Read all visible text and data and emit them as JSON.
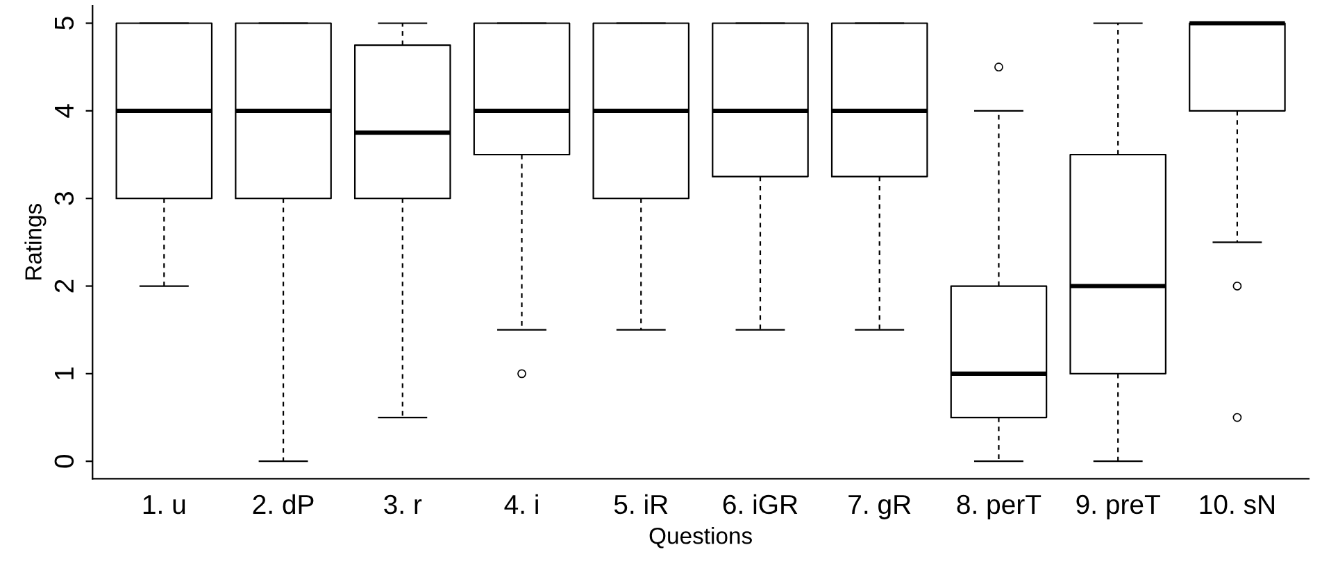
{
  "chart_data": {
    "type": "box",
    "xlabel": "Questions",
    "ylabel": "Ratings",
    "categories": [
      "1. u",
      "2. dP",
      "3. r",
      "4. i",
      "5. iR",
      "6. iGR",
      "7. gR",
      "8. perT",
      "9. preT",
      "10. sN"
    ],
    "boxes": [
      {
        "low": 2,
        "q1": 3,
        "median": 4,
        "q3": 5,
        "high": 5
      },
      {
        "low": 0,
        "q1": 3,
        "median": 4,
        "q3": 5,
        "high": 5
      },
      {
        "low": 0.5,
        "q1": 3,
        "median": 3.75,
        "q3": 4.75,
        "high": 5
      },
      {
        "low": 1.5,
        "q1": 3.5,
        "median": 4,
        "q3": 5,
        "high": 5,
        "outliers": [
          1
        ]
      },
      {
        "low": 1.5,
        "q1": 3,
        "median": 4,
        "q3": 5,
        "high": 5
      },
      {
        "low": 1.5,
        "q1": 3.25,
        "median": 4,
        "q3": 5,
        "high": 5
      },
      {
        "low": 1.5,
        "q1": 3.25,
        "median": 4,
        "q3": 5,
        "high": 5
      },
      {
        "low": 0,
        "q1": 0.5,
        "median": 1,
        "q3": 2,
        "high": 4,
        "outliers": [
          4.5
        ]
      },
      {
        "low": 0,
        "q1": 1,
        "median": 2,
        "q3": 3.5,
        "high": 5
      },
      {
        "low": 2.5,
        "q1": 4,
        "median": 5,
        "q3": 5,
        "high": 5,
        "outliers": [
          2,
          0.5
        ]
      }
    ],
    "ylim": [
      -0.2,
      5.2
    ],
    "yticks": [
      0,
      1,
      2,
      3,
      4,
      5
    ],
    "grid": false,
    "legend": false
  }
}
